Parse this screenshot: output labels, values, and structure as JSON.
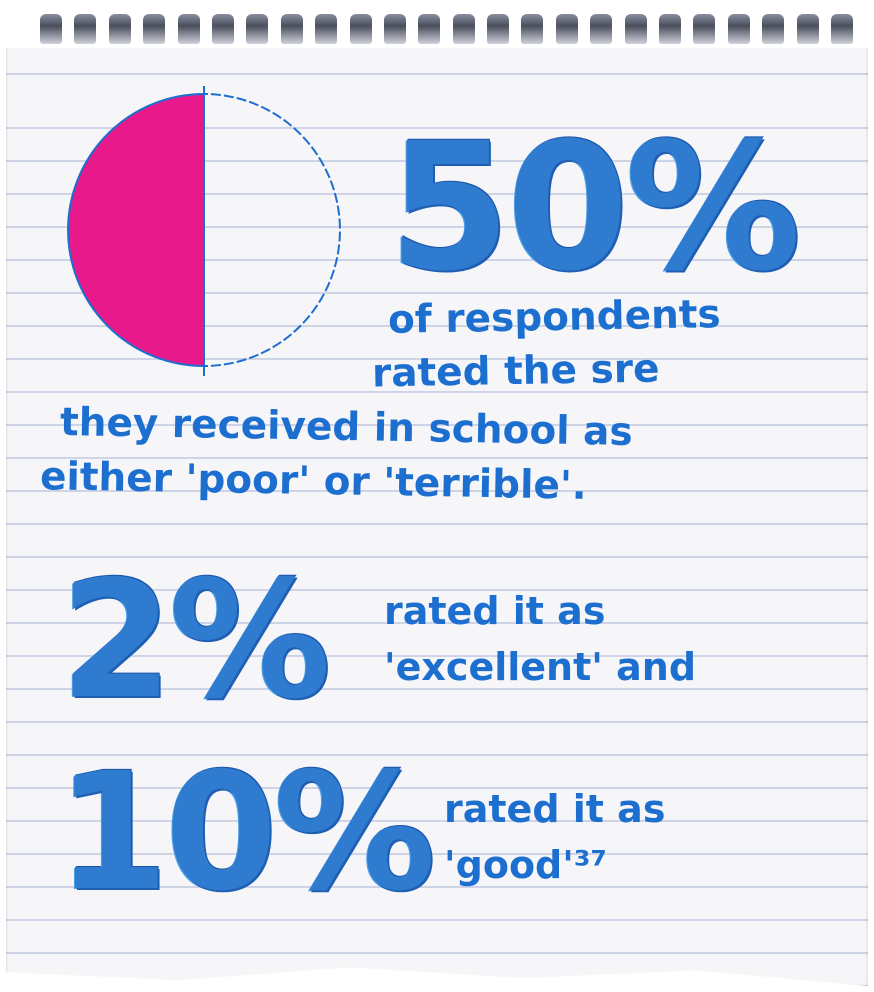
{
  "colors": {
    "ink": "#1d6fcf",
    "pie_filled": "#e8198b",
    "pie_outline": "#1d6fcf",
    "paper": "#f6f5f8",
    "rule_lines": "#cfd3e6"
  },
  "chart_data": {
    "type": "pie",
    "values": [
      50,
      50
    ]
  },
  "stats": {
    "main_value": "50%",
    "main_text_line1": "of respondents",
    "main_text_line2": "rated the sre",
    "main_text_line3": "they received in school as",
    "main_text_line4": "either 'poor' or 'terrible'.",
    "second_value": "2%",
    "second_text_line1": "rated it as",
    "second_text_line2": "'excellent' and",
    "third_value": "10%",
    "third_text_line1": "rated it as",
    "third_text_line2": "'good'³⁷"
  }
}
